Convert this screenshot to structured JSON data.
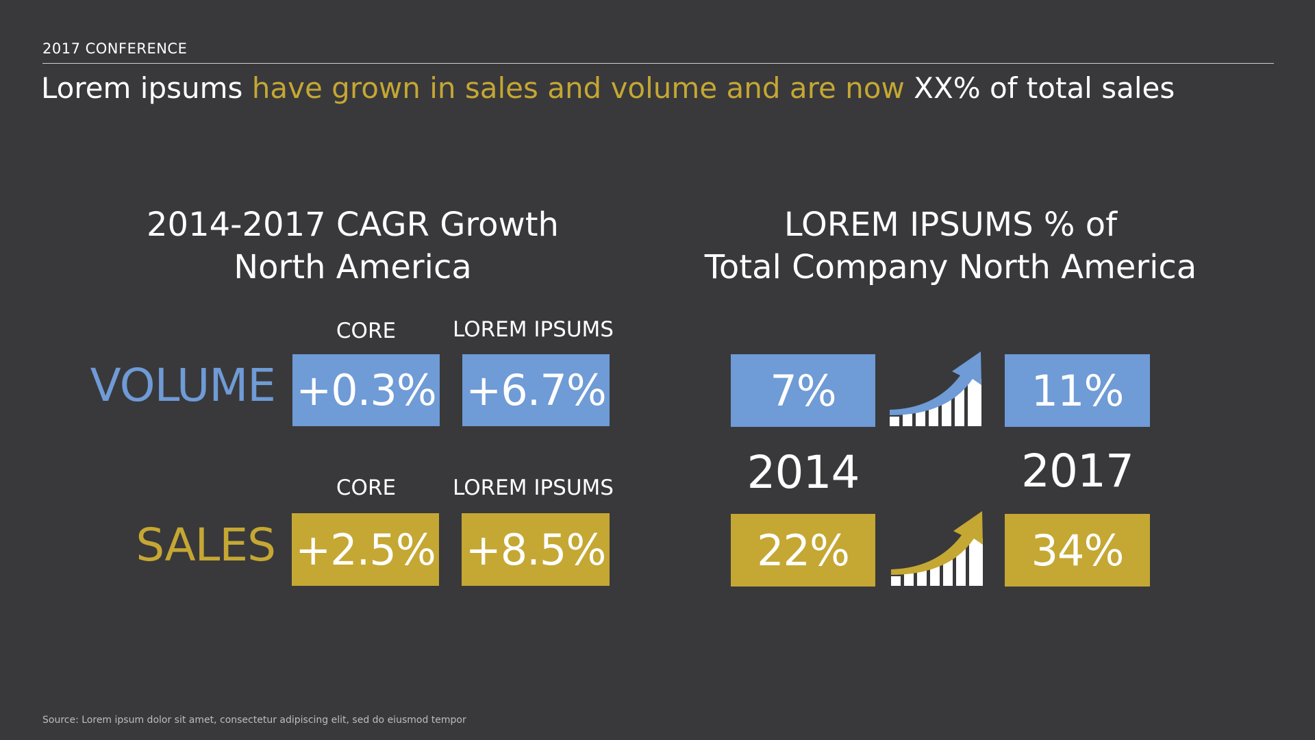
{
  "header": {
    "conference": "2017 CONFERENCE",
    "headline_part1": "Lorem ipsums ",
    "headline_part2": "have grown in sales and volume and are now ",
    "headline_part3": "XX% of total sales"
  },
  "left_section": {
    "title_line1": "2014-2017 CAGR Growth",
    "title_line2": "North America",
    "volume_row": {
      "label": "VOLUME",
      "col1_label": "CORE",
      "col2_label": "LOREM IPSUMS",
      "core_value": "+0.3%",
      "lorem_value": "+6.7%"
    },
    "sales_row": {
      "label": "SALES",
      "col1_label": "CORE",
      "col2_label": "LOREM IPSUMS",
      "core_value": "+2.5%",
      "lorem_value": "+8.5%"
    }
  },
  "right_section": {
    "title_line1": "LOREM IPSUMS % of",
    "title_line2": "Total Company North America",
    "year_start": "2014",
    "year_end": "2017",
    "volume_start": "7%",
    "volume_end": "11%",
    "sales_start": "22%",
    "sales_end": "34%"
  },
  "icons": {
    "volume_growth": "growth-chart-arrow-icon",
    "sales_growth": "growth-chart-arrow-icon"
  },
  "colors": {
    "background": "#39393b",
    "blue": "#6f9bd6",
    "gold": "#c5a733",
    "text": "#ffffff"
  },
  "footer": {
    "source": "Source: Lorem ipsum dolor sit amet, consectetur adipiscing elit, sed do eiusmod tempor"
  }
}
